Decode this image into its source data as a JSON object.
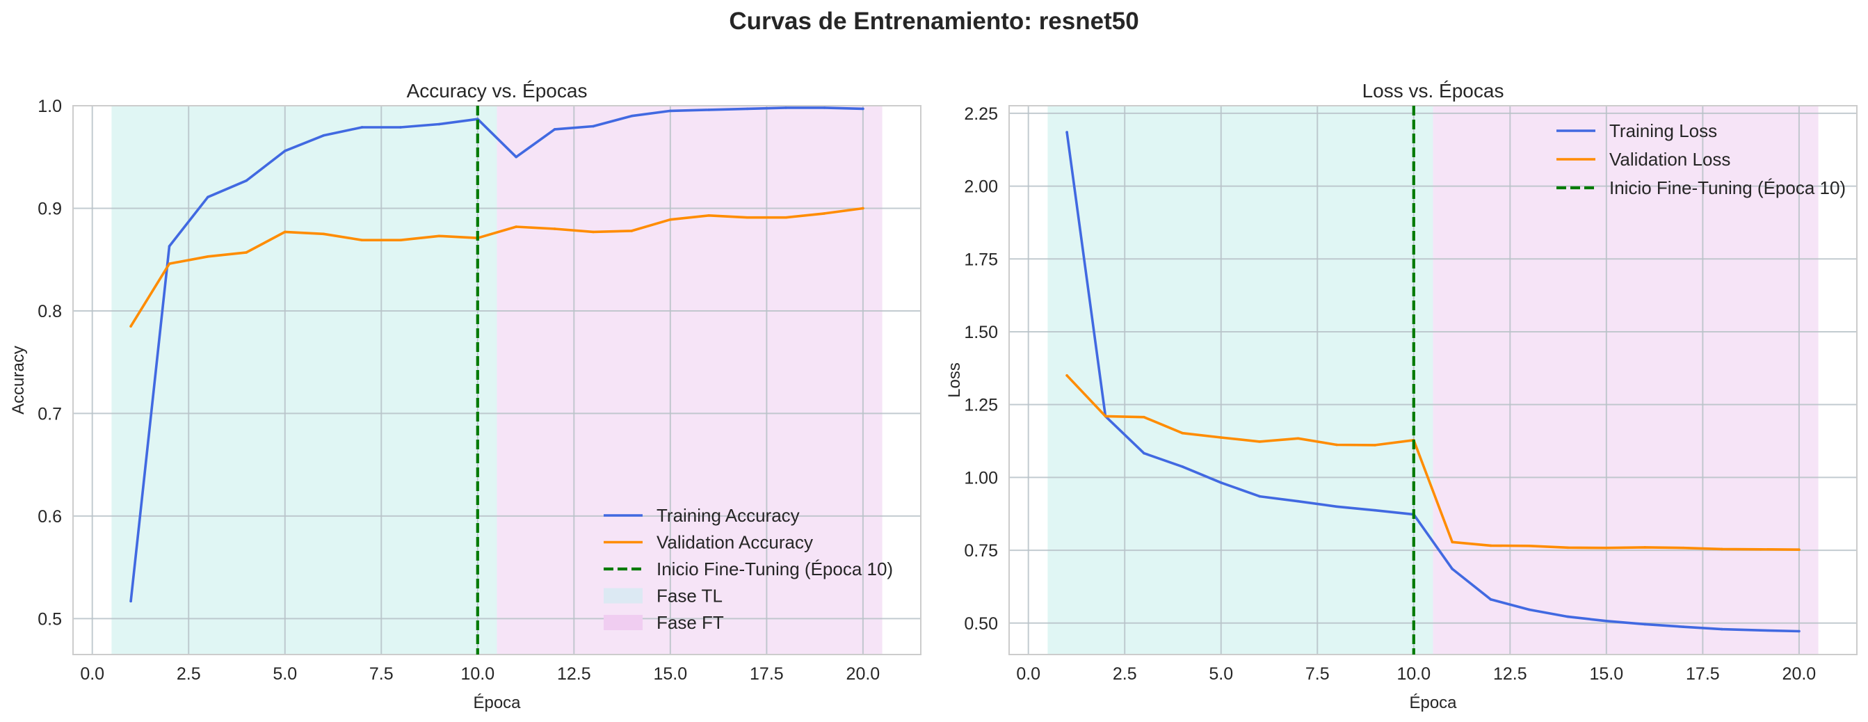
{
  "figure": {
    "title": "Curvas de Entrenamiento: resnet50"
  },
  "colors": {
    "training": "#4169e1",
    "validation": "#ff8c00",
    "finetune_line": "#007a00",
    "phase_tl": "#e0f6f4",
    "phase_ft": "#f6e4f7",
    "grid": "#b8c2c8",
    "frame": "#cccccc"
  },
  "chart_data": [
    {
      "type": "line",
      "title": "Accuracy vs. Épocas",
      "xlabel": "Época",
      "ylabel": "Accuracy",
      "xlim": [
        -0.5,
        21.5
      ],
      "ylim": [
        0.465,
        1.0
      ],
      "xticks": [
        0,
        2.5,
        5,
        7.5,
        10,
        12.5,
        15,
        17.5,
        20
      ],
      "xtick_labels": [
        "0.0",
        "2.5",
        "5.0",
        "7.5",
        "10.0",
        "12.5",
        "15.0",
        "17.5",
        "20.0"
      ],
      "yticks": [
        0.5,
        0.6,
        0.7,
        0.8,
        0.9,
        1.0
      ],
      "ytick_labels": [
        "0.5",
        "0.6",
        "0.7",
        "0.8",
        "0.9",
        "1.0"
      ],
      "grid": true,
      "legend_position": "lower-right",
      "x": [
        1,
        2,
        3,
        4,
        5,
        6,
        7,
        8,
        9,
        10,
        11,
        12,
        13,
        14,
        15,
        16,
        17,
        18,
        19,
        20
      ],
      "series": [
        {
          "name": "Training Accuracy",
          "color_key": "training",
          "values": [
            0.517,
            0.863,
            0.911,
            0.927,
            0.956,
            0.971,
            0.979,
            0.979,
            0.982,
            0.987,
            0.95,
            0.977,
            0.98,
            0.99,
            0.995,
            0.996,
            0.997,
            0.998,
            0.998,
            0.997
          ]
        },
        {
          "name": "Validation Accuracy",
          "color_key": "validation",
          "values": [
            0.785,
            0.846,
            0.853,
            0.857,
            0.877,
            0.875,
            0.869,
            0.869,
            0.873,
            0.871,
            0.882,
            0.88,
            0.877,
            0.878,
            0.889,
            0.893,
            0.891,
            0.891,
            0.895,
            0.9
          ]
        }
      ],
      "vline": {
        "x": 10,
        "label": "Inicio Fine-Tuning (Época 10)"
      },
      "phases": [
        {
          "label": "Fase TL",
          "from": 0.5,
          "to": 10.5
        },
        {
          "label": "Fase FT",
          "from": 10.5,
          "to": 20.5
        }
      ]
    },
    {
      "type": "line",
      "title": "Loss vs. Épocas",
      "xlabel": "Época",
      "ylabel": "Loss",
      "xlim": [
        -0.5,
        21.5
      ],
      "ylim": [
        0.392,
        2.276
      ],
      "xticks": [
        0,
        2.5,
        5,
        7.5,
        10,
        12.5,
        15,
        17.5,
        20
      ],
      "xtick_labels": [
        "0.0",
        "2.5",
        "5.0",
        "7.5",
        "10.0",
        "12.5",
        "15.0",
        "17.5",
        "20.0"
      ],
      "yticks": [
        0.5,
        0.75,
        1.0,
        1.25,
        1.5,
        1.75,
        2.0,
        2.25
      ],
      "ytick_labels": [
        "0.50",
        "0.75",
        "1.00",
        "1.25",
        "1.50",
        "1.75",
        "2.00",
        "2.25"
      ],
      "grid": true,
      "legend_position": "upper-right",
      "x": [
        1,
        2,
        3,
        4,
        5,
        6,
        7,
        8,
        9,
        10,
        11,
        12,
        13,
        14,
        15,
        16,
        17,
        18,
        19,
        20
      ],
      "series": [
        {
          "name": "Training Loss",
          "color_key": "training",
          "values": [
            2.185,
            1.21,
            1.083,
            1.037,
            0.982,
            0.935,
            0.918,
            0.9,
            0.887,
            0.873,
            0.686,
            0.581,
            0.546,
            0.522,
            0.507,
            0.496,
            0.487,
            0.479,
            0.475,
            0.472
          ]
        },
        {
          "name": "Validation Loss",
          "color_key": "validation",
          "values": [
            1.35,
            1.21,
            1.207,
            1.152,
            1.137,
            1.123,
            1.134,
            1.112,
            1.111,
            1.128,
            0.778,
            0.766,
            0.765,
            0.759,
            0.758,
            0.76,
            0.758,
            0.754,
            0.753,
            0.752
          ]
        }
      ],
      "vline": {
        "x": 10,
        "label": "Inicio Fine-Tuning (Época 10)"
      },
      "phases": [
        {
          "label": "Fase TL",
          "from": 0.5,
          "to": 10.5
        },
        {
          "label": "Fase FT",
          "from": 10.5,
          "to": 20.5
        }
      ]
    }
  ]
}
